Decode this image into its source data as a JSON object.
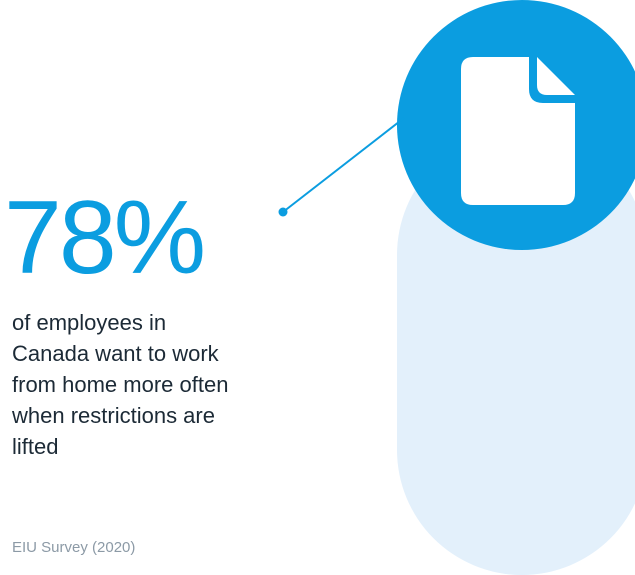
{
  "stat": {
    "value": "78%",
    "description": "of employees in Canada want to work from home more often when restrictions are lifted",
    "source": "EIU Survey (2020)"
  },
  "icon": {
    "name": "document-icon"
  },
  "colors": {
    "accent": "#0b9de0",
    "pill": "#e3f0fb",
    "text": "#1c2a36",
    "muted": "#8c9aa6"
  }
}
